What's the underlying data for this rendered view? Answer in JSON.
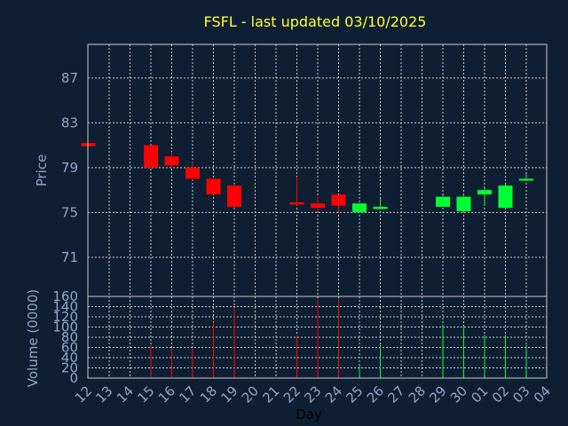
{
  "title": "FSFL - last updated 03/10/2025",
  "colors": {
    "up": "#00ff33",
    "down": "#ff0000",
    "title": "#ffff33",
    "tick": "#8fa6c8",
    "grid": "#c8c8c8",
    "background": "#0f1f33"
  },
  "chart_data": {
    "type": "candlestick",
    "title": "FSFL - last updated 03/10/2025",
    "xlabel": "Day",
    "x_ticks": [
      "12",
      "13",
      "14",
      "15",
      "16",
      "17",
      "18",
      "19",
      "20",
      "21",
      "22",
      "23",
      "24",
      "25",
      "26",
      "27",
      "28",
      "29",
      "30",
      "01",
      "02",
      "03",
      "04"
    ],
    "price_panel": {
      "ylabel": "Price",
      "ylim": [
        67.5,
        90
      ],
      "y_ticks": [
        71,
        75,
        79,
        83,
        87
      ],
      "grid": true,
      "candles": [
        {
          "day": "12",
          "open": 81.2,
          "high": 81.2,
          "low": 80.9,
          "close": 80.9
        },
        {
          "day": "15",
          "open": 81.0,
          "high": 81.0,
          "low": 79.0,
          "close": 79.0
        },
        {
          "day": "16",
          "open": 80.0,
          "high": 80.4,
          "low": 79.0,
          "close": 79.2
        },
        {
          "day": "17",
          "open": 79.0,
          "high": 79.5,
          "low": 77.9,
          "close": 78.0
        },
        {
          "day": "18",
          "open": 78.0,
          "high": 78.0,
          "low": 76.6,
          "close": 76.6
        },
        {
          "day": "19",
          "open": 77.4,
          "high": 77.4,
          "low": 75.4,
          "close": 75.5
        },
        {
          "day": "22",
          "open": 75.9,
          "high": 78.2,
          "low": 75.6,
          "close": 75.7
        },
        {
          "day": "23",
          "open": 75.8,
          "high": 76.4,
          "low": 75.2,
          "close": 75.4
        },
        {
          "day": "24",
          "open": 76.6,
          "high": 76.6,
          "low": 75.0,
          "close": 75.6
        },
        {
          "day": "25",
          "open": 75.0,
          "high": 75.8,
          "low": 75.0,
          "close": 75.8
        },
        {
          "day": "26",
          "open": 75.3,
          "high": 76.2,
          "low": 75.3,
          "close": 75.5
        },
        {
          "day": "29",
          "open": 75.5,
          "high": 76.5,
          "low": 75.5,
          "close": 76.4
        },
        {
          "day": "30",
          "open": 75.1,
          "high": 76.5,
          "low": 75.0,
          "close": 76.4
        },
        {
          "day": "01",
          "open": 76.6,
          "high": 77.2,
          "low": 75.6,
          "close": 77.0
        },
        {
          "day": "02",
          "open": 75.4,
          "high": 77.5,
          "low": 75.4,
          "close": 77.4
        },
        {
          "day": "03",
          "open": 77.9,
          "high": 78.4,
          "low": 77.8,
          "close": 78.0
        }
      ]
    },
    "volume_panel": {
      "ylabel": "Volume (0000)",
      "ylim": [
        0,
        160
      ],
      "y_ticks": [
        0,
        20,
        40,
        60,
        80,
        100,
        120,
        140,
        160
      ],
      "grid": true,
      "bars": [
        {
          "day": "12",
          "value": 0,
          "direction": "down"
        },
        {
          "day": "15",
          "value": 65,
          "direction": "down"
        },
        {
          "day": "16",
          "value": 60,
          "direction": "down"
        },
        {
          "day": "17",
          "value": 60,
          "direction": "down"
        },
        {
          "day": "18",
          "value": 110,
          "direction": "down"
        },
        {
          "day": "19",
          "value": 138,
          "direction": "down"
        },
        {
          "day": "22",
          "value": 85,
          "direction": "down"
        },
        {
          "day": "23",
          "value": 155,
          "direction": "down"
        },
        {
          "day": "24",
          "value": 155,
          "direction": "down"
        },
        {
          "day": "25",
          "value": 25,
          "direction": "up"
        },
        {
          "day": "26",
          "value": 65,
          "direction": "up"
        },
        {
          "day": "29",
          "value": 105,
          "direction": "up"
        },
        {
          "day": "30",
          "value": 100,
          "direction": "up"
        },
        {
          "day": "01",
          "value": 85,
          "direction": "up"
        },
        {
          "day": "02",
          "value": 85,
          "direction": "up"
        },
        {
          "day": "03",
          "value": 65,
          "direction": "up"
        }
      ]
    }
  }
}
